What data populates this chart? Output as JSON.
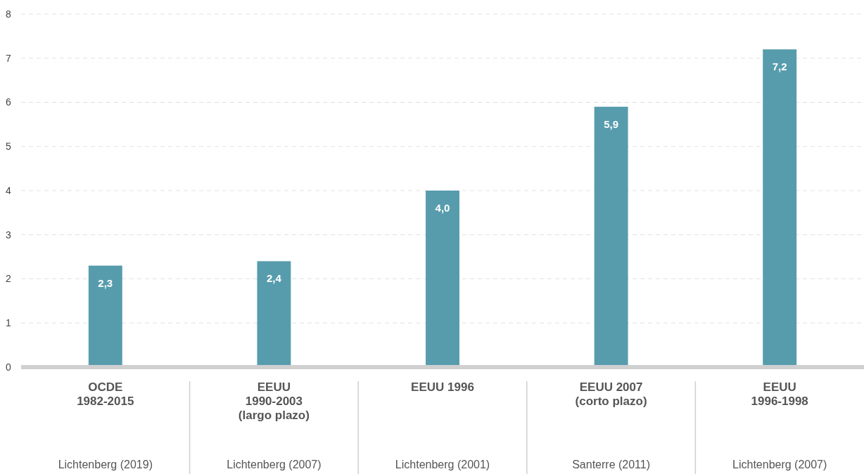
{
  "chart_data": {
    "type": "bar",
    "categories": [
      "OCDE\n1982-2015",
      "EEUU\n1990-2003\n(largo plazo)",
      "EEUU 1996",
      "EEUU 2007\n(corto plazo)",
      "EEUU\n1996-1998"
    ],
    "values": [
      2.3,
      2.4,
      4.0,
      5.9,
      7.2
    ],
    "value_labels": [
      "2,3",
      "2,4",
      "4,0",
      "5,9",
      "7,2"
    ],
    "color": "#579cad",
    "ylim": [
      0,
      8
    ],
    "yticks": [
      0,
      1,
      2,
      3,
      4,
      5,
      6,
      7,
      8
    ],
    "grid": "y",
    "annotations": [
      "Lichtenberg (2019)",
      "Lichtenberg (2007)",
      "Lichtenberg (2001)",
      "Santerre (2011)",
      "Lichtenberg (2007)"
    ]
  }
}
